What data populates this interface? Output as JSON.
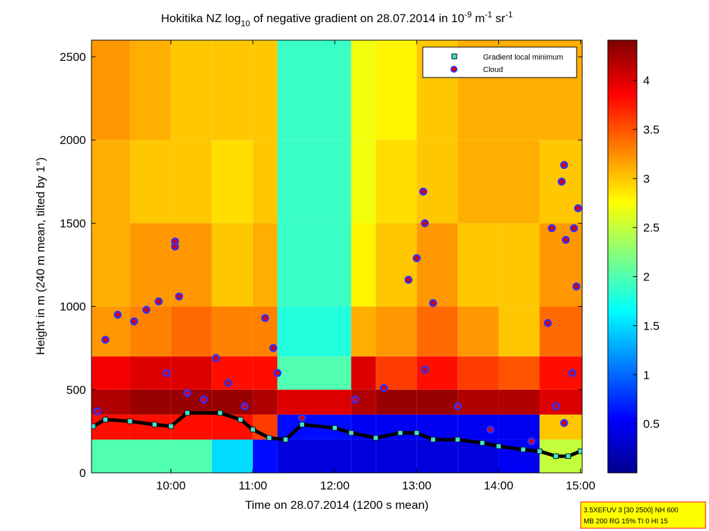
{
  "chart_data": {
    "type": "heatmap",
    "title_parts": [
      "Hokitika NZ log",
      "10",
      " of negative gradient on 28.07.2014 in 10",
      "-9",
      " m",
      "-1",
      " sr",
      "-1"
    ],
    "xlabel": "Time on 28.07.2014 (1200 s mean)",
    "ylabel": "Height in m (240 m mean, tilted by 1°)",
    "xlim": [
      9.03,
      15.02
    ],
    "ylim": [
      0,
      2600
    ],
    "xticks": [
      {
        "value": 10,
        "label": "10:00"
      },
      {
        "value": 11,
        "label": "11:00"
      },
      {
        "value": 12,
        "label": "12:00"
      },
      {
        "value": 13,
        "label": "13:00"
      },
      {
        "value": 14,
        "label": "14:00"
      },
      {
        "value": 15,
        "label": "15:00"
      }
    ],
    "yticks": [
      0,
      500,
      1000,
      1500,
      2000,
      2500
    ],
    "clim": [
      0,
      4.41
    ],
    "cticks": [
      0.5,
      1,
      1.5,
      2,
      2.5,
      3,
      3.5,
      4
    ],
    "colormap": "jet",
    "x_edges": [
      9.03,
      9.5,
      10,
      10.5,
      11,
      11.3,
      12.2,
      12.5,
      13,
      13.5,
      14,
      14.5,
      15.02
    ],
    "y_edges": [
      0,
      200,
      350,
      500,
      700,
      1000,
      1500,
      2000,
      2600
    ],
    "z": [
      [
        2.0,
        2.0,
        2.0,
        1.5,
        0.6,
        0.4,
        0.4,
        0.4,
        0.4,
        0.4,
        0.5,
        2.5
      ],
      [
        3.8,
        3.8,
        3.8,
        3.8,
        3.6,
        0.6,
        0.5,
        0.5,
        0.5,
        0.5,
        0.5,
        3.0
      ],
      [
        4.2,
        4.3,
        4.3,
        4.3,
        4.2,
        4.0,
        4.2,
        4.3,
        4.3,
        4.2,
        4.2,
        4.0
      ],
      [
        3.9,
        4.0,
        4.0,
        3.8,
        3.8,
        2.0,
        4.0,
        3.6,
        3.8,
        3.6,
        3.5,
        3.8
      ],
      [
        3.2,
        3.3,
        3.4,
        3.3,
        3.3,
        1.8,
        3.1,
        3.2,
        3.4,
        3.2,
        3.0,
        3.4
      ],
      [
        3.1,
        3.2,
        3.2,
        3.0,
        3.1,
        1.9,
        2.8,
        3.0,
        3.2,
        3.0,
        3.0,
        3.2
      ],
      [
        3.1,
        3.0,
        3.0,
        2.9,
        3.0,
        1.9,
        2.7,
        2.9,
        3.0,
        3.1,
        3.1,
        3.0
      ],
      [
        3.2,
        3.1,
        3.0,
        3.0,
        3.0,
        1.9,
        2.7,
        2.8,
        3.0,
        3.1,
        3.1,
        3.1
      ]
    ],
    "series": [
      {
        "name": "Gradient local minimum",
        "color": "#40e0d0",
        "x": [
          9.05,
          9.2,
          9.5,
          9.8,
          10.0,
          10.2,
          10.6,
          10.85,
          11.0,
          11.2,
          11.4,
          11.6,
          12.0,
          12.2,
          12.5,
          12.8,
          13.0,
          13.2,
          13.5,
          13.8,
          14.0,
          14.3,
          14.5,
          14.7,
          14.85,
          15.0
        ],
        "values": [
          280,
          320,
          310,
          290,
          280,
          360,
          360,
          320,
          260,
          210,
          200,
          290,
          270,
          240,
          210,
          240,
          240,
          200,
          200,
          180,
          160,
          140,
          130,
          100,
          100,
          130
        ]
      },
      {
        "name": "Cloud",
        "color": "#dd0000",
        "x": [
          9.1,
          9.2,
          9.35,
          9.55,
          9.7,
          9.85,
          9.95,
          10.05,
          10.05,
          10.1,
          10.2,
          10.4,
          10.55,
          10.7,
          10.9,
          11.15,
          11.25,
          11.3,
          11.6,
          12.25,
          12.6,
          12.9,
          13.0,
          13.08,
          13.1,
          13.2,
          13.1,
          13.5,
          13.9,
          14.4,
          14.65,
          14.6,
          14.8,
          14.77,
          14.82,
          14.92,
          14.97,
          14.95,
          14.9,
          14.7,
          14.8
        ],
        "values": [
          370,
          800,
          950,
          910,
          980,
          1030,
          600,
          1390,
          1360,
          1060,
          480,
          440,
          690,
          540,
          400,
          930,
          750,
          600,
          330,
          440,
          510,
          1160,
          1290,
          1690,
          1500,
          1020,
          620,
          400,
          260,
          190,
          1470,
          900,
          1850,
          1750,
          1400,
          1470,
          1590,
          1120,
          600,
          400,
          300
        ]
      }
    ],
    "legend": "upper right",
    "info_lines": [
      "3.5XEFUV 3 [30 2500] NH 600",
      "MB 200 RG 15% TI 0 HI 15"
    ]
  }
}
